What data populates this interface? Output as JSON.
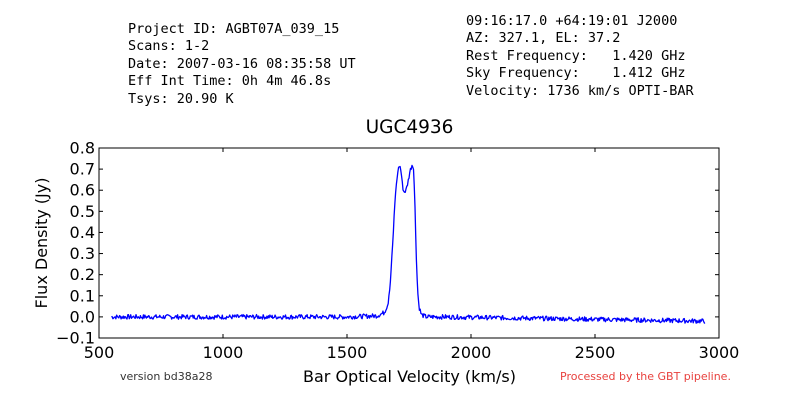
{
  "header": {
    "left_lines": [
      "Project ID: AGBT07A_039_15",
      "Scans: 1-2",
      "Date: 2007-03-16 08:35:58 UT",
      "Eff Int Time: 0h 4m 46.8s",
      "Tsys: 20.90 K"
    ],
    "right_lines": [
      "09:16:17.0 +64:19:01 J2000",
      "AZ: 327.1, EL: 37.2",
      "Rest Frequency:   1.420 GHz",
      "Sky Frequency:    1.412 GHz",
      "Velocity: 1736 km/s OPTI-BAR"
    ]
  },
  "footer": {
    "version": "version bd38a28",
    "pipeline": "Processed by the GBT pipeline.",
    "pipeline_color": "#e8413e"
  },
  "chart_data": {
    "type": "line",
    "title": "UGC4936",
    "xlabel": "Bar Optical Velocity (km/s)",
    "ylabel": "Flux Density (Jy)",
    "xlim": [
      500,
      3000
    ],
    "ylim": [
      -0.1,
      0.8
    ],
    "xticks": [
      500,
      1000,
      1500,
      2000,
      2500,
      3000
    ],
    "yticks": [
      -0.1,
      0.0,
      0.1,
      0.2,
      0.3,
      0.4,
      0.5,
      0.6,
      0.7,
      0.8
    ],
    "grid": false,
    "line_color": "#0000ff",
    "series": [
      {
        "x": [
          550,
          1500,
          1620,
          1650,
          1665,
          1675,
          1685,
          1695,
          1705,
          1712,
          1718,
          1724,
          1730,
          1738,
          1746,
          1754,
          1762,
          1768,
          1772,
          1778,
          1784,
          1790,
          1800,
          1820,
          1900,
          2945
        ],
        "y": [
          0.0,
          0.0,
          0.005,
          0.02,
          0.06,
          0.17,
          0.36,
          0.58,
          0.69,
          0.72,
          0.69,
          0.62,
          0.59,
          0.6,
          0.64,
          0.69,
          0.72,
          0.71,
          0.6,
          0.35,
          0.14,
          0.05,
          0.01,
          0.0,
          0.0,
          -0.02
        ]
      }
    ]
  }
}
